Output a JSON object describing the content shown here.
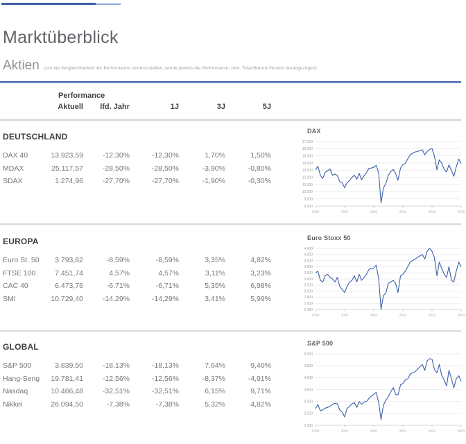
{
  "page": {
    "title": "Marktüberblick",
    "section_heading": "Aktien",
    "section_note": "(um die Vergleichbarkeit der Performance sicherzustellen, wurde jeweils die Performance- bzw. Total-Return-Version herangezogen)"
  },
  "table": {
    "group_header": "Performance",
    "columns": [
      "Aktuell",
      "lfd. Jahr",
      "1J",
      "3J",
      "5J"
    ],
    "sections": [
      {
        "name": "DEUTSCHLAND",
        "rows": [
          {
            "label": "DAX 40",
            "values": [
              "13.923,59",
              "-12,30%",
              "-12,30%",
              "1,70%",
              "1,50%"
            ]
          },
          {
            "label": "MDAX",
            "values": [
              "25.117,57",
              "-28,50%",
              "-28,50%",
              "-3,90%",
              "-0,80%"
            ]
          },
          {
            "label": "SDAX",
            "values": [
              "1.274,96",
              "-27,70%",
              "-27,70%",
              "-1,90%",
              "-0,30%"
            ]
          }
        ]
      },
      {
        "name": "EUROPA",
        "rows": [
          {
            "label": "Euro St. 50",
            "values": [
              "3.793,62",
              "-8,59%",
              "-8,59%",
              "3,35%",
              "4,82%"
            ]
          },
          {
            "label": "FTSE 100",
            "values": [
              "7.451,74",
              "4,57%",
              "4,57%",
              "3,11%",
              "3,23%"
            ]
          },
          {
            "label": "CAC 40",
            "values": [
              "6.473,76",
              "-6,71%",
              "-6,71%",
              "5,35%",
              "6,98%"
            ]
          },
          {
            "label": "SMI",
            "values": [
              "10.729,40",
              "-14,29%",
              "-14,29%",
              "3,41%",
              "5,99%"
            ]
          }
        ]
      },
      {
        "name": "GLOBAL",
        "rows": [
          {
            "label": "S&P 500",
            "values": [
              "3.839,50",
              "-18,13%",
              "-18,13%",
              "7,64%",
              "9,40%"
            ]
          },
          {
            "label": "Hang-Seng",
            "values": [
              "19.781,41",
              "-12,56%",
              "-12,56%",
              "-8,37%",
              "-4,91%"
            ]
          },
          {
            "label": "Nasdaq",
            "values": [
              "10.466,48",
              "-32,51%",
              "-32,51%",
              "6,15%",
              "9,71%"
            ]
          },
          {
            "label": "Nikkei",
            "values": [
              "26.094,50",
              "-7,38%",
              "-7,38%",
              "5,32%",
              "4,82%"
            ]
          }
        ]
      }
    ]
  },
  "colors": {
    "chart_line": "#3b5ea9",
    "accent_rule": "#4a6bb4",
    "topbar_dark": "#3d5fa8",
    "topbar_light": "#8da5d5",
    "grid": "#ededed",
    "axis": "#d7d7d7",
    "tick_text": "#9b9fa3"
  },
  "chart_data": [
    {
      "type": "line",
      "title": "DAX",
      "xlabel": "",
      "ylabel": "",
      "xlim": [
        2018,
        2023
      ],
      "ylim": [
        8000,
        17000
      ],
      "ytick_step": 1000,
      "xticks": [
        2018,
        2019,
        2020,
        2021,
        2022,
        2023
      ],
      "grid": true,
      "legend": false,
      "points": [
        [
          2018.0,
          13050
        ],
        [
          2018.08,
          13550
        ],
        [
          2018.17,
          12250
        ],
        [
          2018.25,
          11850
        ],
        [
          2018.33,
          12700
        ],
        [
          2018.42,
          12950
        ],
        [
          2018.5,
          13150
        ],
        [
          2018.58,
          12300
        ],
        [
          2018.67,
          12450
        ],
        [
          2018.75,
          12250
        ],
        [
          2018.83,
          11450
        ],
        [
          2018.92,
          11200
        ],
        [
          2019.0,
          10550
        ],
        [
          2019.08,
          11250
        ],
        [
          2019.17,
          11550
        ],
        [
          2019.25,
          12000
        ],
        [
          2019.33,
          12300
        ],
        [
          2019.42,
          11750
        ],
        [
          2019.5,
          12550
        ],
        [
          2019.58,
          11650
        ],
        [
          2019.67,
          12250
        ],
        [
          2019.75,
          12650
        ],
        [
          2019.83,
          13250
        ],
        [
          2019.92,
          13300
        ],
        [
          2020.0,
          13400
        ],
        [
          2020.08,
          13700
        ],
        [
          2020.17,
          12600
        ],
        [
          2020.25,
          8450
        ],
        [
          2020.33,
          10500
        ],
        [
          2020.42,
          11200
        ],
        [
          2020.5,
          12300
        ],
        [
          2020.58,
          12800
        ],
        [
          2020.67,
          13100
        ],
        [
          2020.75,
          12550
        ],
        [
          2020.83,
          11600
        ],
        [
          2020.92,
          13300
        ],
        [
          2021.0,
          13800
        ],
        [
          2021.08,
          13900
        ],
        [
          2021.17,
          14600
        ],
        [
          2021.25,
          15150
        ],
        [
          2021.33,
          15350
        ],
        [
          2021.42,
          15550
        ],
        [
          2021.5,
          15600
        ],
        [
          2021.58,
          15750
        ],
        [
          2021.67,
          15850
        ],
        [
          2021.75,
          15150
        ],
        [
          2021.83,
          15600
        ],
        [
          2021.92,
          15900
        ],
        [
          2022.0,
          16020
        ],
        [
          2022.08,
          15000
        ],
        [
          2022.17,
          13050
        ],
        [
          2022.25,
          14450
        ],
        [
          2022.33,
          14000
        ],
        [
          2022.42,
          13100
        ],
        [
          2022.5,
          12750
        ],
        [
          2022.58,
          13750
        ],
        [
          2022.67,
          12950
        ],
        [
          2022.75,
          12150
        ],
        [
          2022.83,
          13450
        ],
        [
          2022.92,
          14550
        ],
        [
          2023.0,
          13924
        ]
      ]
    },
    {
      "type": "line",
      "title": "Euro Stoxx 50",
      "xlabel": "",
      "ylabel": "",
      "xlim": [
        2018,
        2023
      ],
      "ylim": [
        2400,
        4400
      ],
      "ytick_step": 200,
      "xticks": [
        2018,
        2019,
        2020,
        2021,
        2022,
        2023
      ],
      "grid": true,
      "legend": false,
      "points": [
        [
          2018.0,
          3600
        ],
        [
          2018.08,
          3650
        ],
        [
          2018.17,
          3350
        ],
        [
          2018.25,
          3300
        ],
        [
          2018.33,
          3500
        ],
        [
          2018.42,
          3550
        ],
        [
          2018.5,
          3450
        ],
        [
          2018.58,
          3400
        ],
        [
          2018.67,
          3300
        ],
        [
          2018.75,
          3450
        ],
        [
          2018.83,
          3150
        ],
        [
          2018.92,
          3050
        ],
        [
          2019.0,
          2950
        ],
        [
          2019.08,
          3150
        ],
        [
          2019.17,
          3300
        ],
        [
          2019.25,
          3350
        ],
        [
          2019.33,
          3500
        ],
        [
          2019.42,
          3300
        ],
        [
          2019.5,
          3550
        ],
        [
          2019.58,
          3350
        ],
        [
          2019.67,
          3450
        ],
        [
          2019.75,
          3550
        ],
        [
          2019.83,
          3700
        ],
        [
          2019.92,
          3750
        ],
        [
          2020.0,
          3750
        ],
        [
          2020.08,
          3850
        ],
        [
          2020.17,
          3400
        ],
        [
          2020.25,
          2400
        ],
        [
          2020.33,
          2850
        ],
        [
          2020.42,
          2950
        ],
        [
          2020.5,
          3250
        ],
        [
          2020.58,
          3300
        ],
        [
          2020.67,
          3350
        ],
        [
          2020.75,
          3250
        ],
        [
          2020.83,
          2950
        ],
        [
          2020.92,
          3500
        ],
        [
          2021.0,
          3550
        ],
        [
          2021.08,
          3650
        ],
        [
          2021.17,
          3800
        ],
        [
          2021.25,
          3950
        ],
        [
          2021.33,
          4000
        ],
        [
          2021.42,
          4050
        ],
        [
          2021.5,
          4100
        ],
        [
          2021.58,
          4150
        ],
        [
          2021.67,
          4200
        ],
        [
          2021.75,
          4050
        ],
        [
          2021.83,
          4300
        ],
        [
          2021.92,
          4400
        ],
        [
          2022.0,
          4300
        ],
        [
          2022.08,
          4100
        ],
        [
          2022.17,
          3500
        ],
        [
          2022.25,
          3950
        ],
        [
          2022.33,
          3750
        ],
        [
          2022.42,
          3550
        ],
        [
          2022.5,
          3450
        ],
        [
          2022.58,
          3800
        ],
        [
          2022.67,
          3350
        ],
        [
          2022.75,
          3300
        ],
        [
          2022.83,
          3650
        ],
        [
          2022.92,
          3950
        ],
        [
          2023.0,
          3794
        ]
      ]
    },
    {
      "type": "line",
      "title": "S&P 500",
      "xlabel": "",
      "ylabel": "",
      "xlim": [
        2018,
        2023
      ],
      "ylim": [
        2000,
        5000
      ],
      "ytick_step": 500,
      "xticks": [
        2018,
        2019,
        2020,
        2021,
        2022,
        2023
      ],
      "grid": true,
      "legend": false,
      "points": [
        [
          2018.0,
          2700
        ],
        [
          2018.08,
          2870
        ],
        [
          2018.17,
          2600
        ],
        [
          2018.25,
          2650
        ],
        [
          2018.33,
          2720
        ],
        [
          2018.42,
          2750
        ],
        [
          2018.5,
          2800
        ],
        [
          2018.58,
          2880
        ],
        [
          2018.67,
          2920
        ],
        [
          2018.75,
          2900
        ],
        [
          2018.83,
          2650
        ],
        [
          2018.92,
          2550
        ],
        [
          2019.0,
          2350
        ],
        [
          2019.08,
          2700
        ],
        [
          2019.17,
          2800
        ],
        [
          2019.25,
          2900
        ],
        [
          2019.33,
          2950
        ],
        [
          2019.42,
          2750
        ],
        [
          2019.5,
          3000
        ],
        [
          2019.58,
          2880
        ],
        [
          2019.67,
          2980
        ],
        [
          2019.75,
          3000
        ],
        [
          2019.83,
          3120
        ],
        [
          2019.92,
          3230
        ],
        [
          2020.0,
          3300
        ],
        [
          2020.08,
          3380
        ],
        [
          2020.17,
          2950
        ],
        [
          2020.25,
          2240
        ],
        [
          2020.33,
          2850
        ],
        [
          2020.42,
          3050
        ],
        [
          2020.5,
          3200
        ],
        [
          2020.58,
          3400
        ],
        [
          2020.67,
          3580
        ],
        [
          2020.75,
          3300
        ],
        [
          2020.83,
          3270
        ],
        [
          2020.92,
          3700
        ],
        [
          2021.0,
          3750
        ],
        [
          2021.08,
          3900
        ],
        [
          2021.17,
          3950
        ],
        [
          2021.25,
          4150
        ],
        [
          2021.33,
          4200
        ],
        [
          2021.42,
          4250
        ],
        [
          2021.5,
          4350
        ],
        [
          2021.58,
          4450
        ],
        [
          2021.67,
          4550
        ],
        [
          2021.75,
          4300
        ],
        [
          2021.83,
          4700
        ],
        [
          2021.92,
          4800
        ],
        [
          2022.0,
          4770
        ],
        [
          2022.08,
          4350
        ],
        [
          2022.17,
          4200
        ],
        [
          2022.25,
          4550
        ],
        [
          2022.33,
          4100
        ],
        [
          2022.42,
          3900
        ],
        [
          2022.5,
          3650
        ],
        [
          2022.58,
          4300
        ],
        [
          2022.67,
          3950
        ],
        [
          2022.75,
          3570
        ],
        [
          2022.83,
          3950
        ],
        [
          2022.92,
          4080
        ],
        [
          2023.0,
          3840
        ]
      ]
    }
  ]
}
